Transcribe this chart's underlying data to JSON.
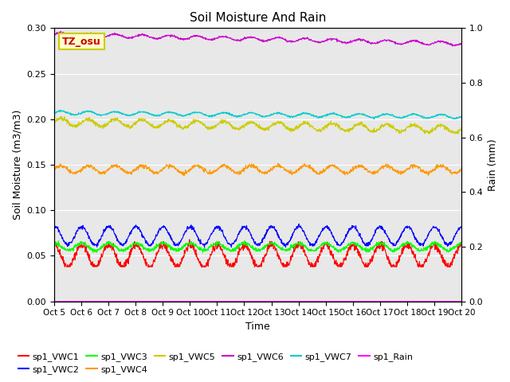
{
  "title": "Soil Moisture And Rain",
  "xlabel": "Time",
  "ylabel_left": "Soil Moisture (m3/m3)",
  "ylabel_right": "Rain (mm)",
  "ylim_left": [
    0.0,
    0.3
  ],
  "ylim_right": [
    0.0,
    1.0
  ],
  "yticks_left": [
    0.0,
    0.05,
    0.1,
    0.15,
    0.2,
    0.25,
    0.3
  ],
  "yticks_right": [
    0.0,
    0.2,
    0.4,
    0.6,
    0.8,
    1.0
  ],
  "xtick_labels": [
    "Oct 5",
    "Oct 6",
    "Oct 7",
    "Oct 8",
    "Oct 9",
    "Oct 10",
    "Oct 11",
    "Oct 12",
    "Oct 13",
    "Oct 14",
    "Oct 15",
    "Oct 16",
    "Oct 17",
    "Oct 18",
    "Oct 19",
    "Oct 20"
  ],
  "n_points": 1440,
  "background_color": "#e8e8e8",
  "annotation_text": "TZ_osu",
  "annotation_color": "#cc0000",
  "annotation_bg": "#ffffcc",
  "series": [
    {
      "name": "sp1_VWC1",
      "color": "#ff0000"
    },
    {
      "name": "sp1_VWC2",
      "color": "#0000ff"
    },
    {
      "name": "sp1_VWC3",
      "color": "#00ff00"
    },
    {
      "name": "sp1_VWC4",
      "color": "#ff9900"
    },
    {
      "name": "sp1_VWC5",
      "color": "#cccc00"
    },
    {
      "name": "sp1_VWC6",
      "color": "#cc00cc"
    },
    {
      "name": "sp1_VWC7",
      "color": "#00cccc"
    },
    {
      "name": "sp1_Rain",
      "color": "#ff00ff"
    }
  ],
  "legend_row1": [
    "sp1_VWC1",
    "sp1_VWC2",
    "sp1_VWC3",
    "sp1_VWC4",
    "sp1_VWC5",
    "sp1_VWC6"
  ],
  "legend_row2": [
    "sp1_VWC7",
    "sp1_Rain"
  ]
}
